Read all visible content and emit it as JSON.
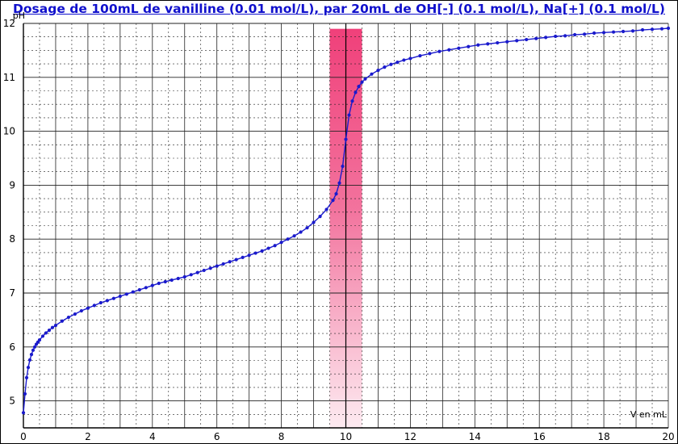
{
  "chart_data": {
    "type": "line",
    "title": "Dosage de 100mL de vanilline (0.01 mol/L),  par 20mL  de OH[-] (0.1 mol/L), Na[+] (0.1 mol/L)",
    "xlabel": "V en mL",
    "ylabel": "pH",
    "xlim": [
      0,
      20
    ],
    "ylim": [
      4.5,
      12
    ],
    "x_ticks": [
      "0",
      "2",
      "4",
      "6",
      "8",
      "10",
      "12",
      "14",
      "16",
      "18",
      "20"
    ],
    "y_ticks": [
      "5",
      "6",
      "7",
      "8",
      "9",
      "10",
      "11",
      "12"
    ],
    "grid": true,
    "equivalence_band": {
      "x_start": 9.5,
      "x_end": 10.5,
      "y_top": 11.9
    },
    "equivalence_line_x": 10,
    "series": [
      {
        "color": "#1a1acc",
        "points": [
          [
            0,
            4.78
          ],
          [
            0.05,
            5.13
          ],
          [
            0.1,
            5.43
          ],
          [
            0.15,
            5.62
          ],
          [
            0.2,
            5.76
          ],
          [
            0.25,
            5.86
          ],
          [
            0.3,
            5.94
          ],
          [
            0.35,
            6.0
          ],
          [
            0.4,
            6.05
          ],
          [
            0.45,
            6.09
          ],
          [
            0.5,
            6.13
          ],
          [
            0.6,
            6.2
          ],
          [
            0.7,
            6.26
          ],
          [
            0.8,
            6.31
          ],
          [
            0.9,
            6.36
          ],
          [
            1.0,
            6.4
          ],
          [
            1.2,
            6.48
          ],
          [
            1.4,
            6.55
          ],
          [
            1.6,
            6.61
          ],
          [
            1.8,
            6.67
          ],
          [
            2.0,
            6.72
          ],
          [
            2.2,
            6.77
          ],
          [
            2.4,
            6.82
          ],
          [
            2.6,
            6.86
          ],
          [
            2.8,
            6.9
          ],
          [
            3.0,
            6.94
          ],
          [
            3.2,
            6.98
          ],
          [
            3.4,
            7.02
          ],
          [
            3.6,
            7.06
          ],
          [
            3.8,
            7.1
          ],
          [
            4.0,
            7.14
          ],
          [
            4.2,
            7.18
          ],
          [
            4.4,
            7.21
          ],
          [
            4.6,
            7.24
          ],
          [
            4.8,
            7.27
          ],
          [
            5.0,
            7.3
          ],
          [
            5.2,
            7.34
          ],
          [
            5.4,
            7.38
          ],
          [
            5.6,
            7.42
          ],
          [
            5.8,
            7.46
          ],
          [
            6.0,
            7.5
          ],
          [
            6.2,
            7.54
          ],
          [
            6.4,
            7.58
          ],
          [
            6.6,
            7.62
          ],
          [
            6.8,
            7.66
          ],
          [
            7.0,
            7.7
          ],
          [
            7.2,
            7.74
          ],
          [
            7.4,
            7.78
          ],
          [
            7.6,
            7.83
          ],
          [
            7.8,
            7.88
          ],
          [
            8.0,
            7.94
          ],
          [
            8.2,
            8.0
          ],
          [
            8.4,
            8.06
          ],
          [
            8.6,
            8.13
          ],
          [
            8.8,
            8.21
          ],
          [
            9.0,
            8.31
          ],
          [
            9.2,
            8.42
          ],
          [
            9.4,
            8.55
          ],
          [
            9.6,
            8.72
          ],
          [
            9.7,
            8.84
          ],
          [
            9.8,
            9.04
          ],
          [
            9.9,
            9.35
          ],
          [
            10.0,
            9.85
          ],
          [
            10.1,
            10.3
          ],
          [
            10.2,
            10.56
          ],
          [
            10.3,
            10.72
          ],
          [
            10.4,
            10.83
          ],
          [
            10.5,
            10.91
          ],
          [
            10.6,
            10.97
          ],
          [
            10.8,
            11.06
          ],
          [
            11.0,
            11.13
          ],
          [
            11.2,
            11.19
          ],
          [
            11.4,
            11.24
          ],
          [
            11.6,
            11.28
          ],
          [
            11.8,
            11.32
          ],
          [
            12.0,
            11.35
          ],
          [
            12.3,
            11.4
          ],
          [
            12.6,
            11.44
          ],
          [
            12.9,
            11.48
          ],
          [
            13.2,
            11.51
          ],
          [
            13.5,
            11.54
          ],
          [
            13.8,
            11.57
          ],
          [
            14.1,
            11.6
          ],
          [
            14.4,
            11.62
          ],
          [
            14.7,
            11.64
          ],
          [
            15.0,
            11.66
          ],
          [
            15.3,
            11.68
          ],
          [
            15.6,
            11.7
          ],
          [
            15.9,
            11.72
          ],
          [
            16.2,
            11.74
          ],
          [
            16.5,
            11.76
          ],
          [
            16.8,
            11.77
          ],
          [
            17.1,
            11.79
          ],
          [
            17.4,
            11.8
          ],
          [
            17.7,
            11.82
          ],
          [
            18.0,
            11.83
          ],
          [
            18.3,
            11.84
          ],
          [
            18.6,
            11.85
          ],
          [
            18.9,
            11.86
          ],
          [
            19.2,
            11.88
          ],
          [
            19.5,
            11.89
          ],
          [
            19.8,
            11.9
          ],
          [
            20.0,
            11.91
          ]
        ]
      }
    ]
  }
}
